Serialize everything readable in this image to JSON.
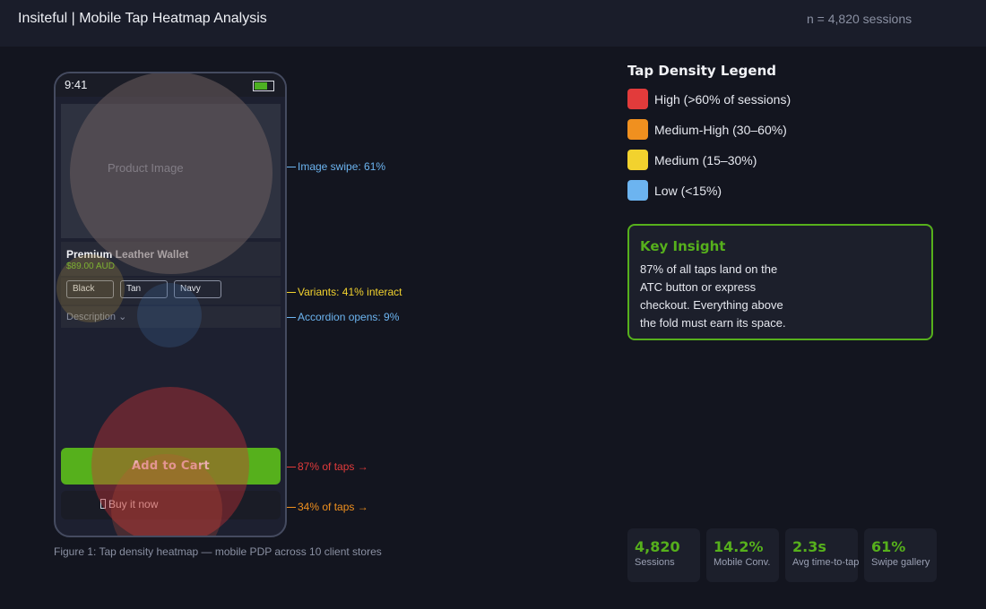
{
  "header": {
    "title": "Insiteful | Mobile Tap Heatmap Analysis",
    "sessions": "n = 4,820 sessions"
  },
  "phone": {
    "time": "9:41",
    "battery_level": 0.7,
    "image_label": "Product Image",
    "product_name": "Premium Leather Wallet",
    "price": "$89.00 AUD",
    "variants": [
      "Black",
      "Tan",
      "Navy"
    ],
    "accordion_label": "Description ⌄",
    "atc_label": "Add to Cart",
    "buy_now_label": "Buy it now"
  },
  "callouts": {
    "image_swipe": "Image swipe: 61%",
    "variants": "Variants: 41% interact",
    "accordion": "Accordion opens: 9%",
    "atc": "87% of taps →",
    "buy_now": "34% of taps →"
  },
  "caption": "Figure 1: Tap density heatmap — mobile PDP across 10 client stores",
  "legend": {
    "title": "Tap Density Legend",
    "items": [
      {
        "label": "High (>60% of sessions)",
        "color": "#e23b3b"
      },
      {
        "label": "Medium-High (30–60%)",
        "color": "#f0901f"
      },
      {
        "label": "Medium (15–30%)",
        "color": "#f2d22e"
      },
      {
        "label": "Low (<15%)",
        "color": "#6cb4f0"
      }
    ]
  },
  "insight": {
    "title": "Key Insight",
    "body": "87% of all taps land on the ATC button or express checkout. Everything above the fold must earn its space."
  },
  "stats": [
    {
      "value": "4,820",
      "label": "Sessions"
    },
    {
      "value": "14.2%",
      "label": "Mobile Conv."
    },
    {
      "value": "2.3s",
      "label": "Avg time-to-tap"
    },
    {
      "value": "61%",
      "label": "Swipe gallery"
    }
  ],
  "colors": {
    "accent": "#56b01c",
    "heat_high": "#e23b3b",
    "heat_medium_high": "#f0901f",
    "heat_medium": "#f2d22e",
    "heat_low": "#6cb4f0"
  }
}
